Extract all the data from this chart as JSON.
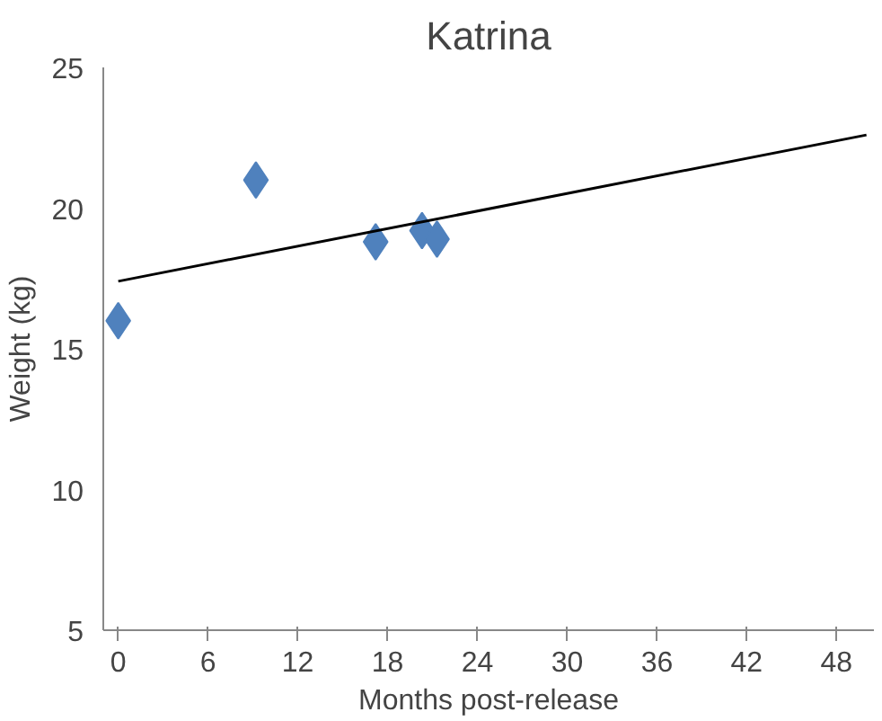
{
  "chart_data": {
    "type": "scatter",
    "title": "Katrina",
    "xlabel": "Months post-release",
    "ylabel": "Weight (kg)",
    "xlim": [
      -1,
      50.5
    ],
    "ylim": [
      5,
      25
    ],
    "xticks": [
      0,
      6,
      12,
      18,
      24,
      30,
      36,
      42,
      48
    ],
    "yticks": [
      5,
      10,
      15,
      20,
      25
    ],
    "grid": false,
    "series": [
      {
        "marker": "diamond",
        "color": "#4f81bd",
        "x": [
          0,
          9.2,
          17.2,
          20.3,
          21.3
        ],
        "values": [
          16.0,
          21.0,
          18.8,
          19.2,
          18.9
        ]
      },
      {
        "type": "line",
        "marker": "none",
        "line_style": "solid",
        "color": "#000000",
        "x": [
          0,
          50
        ],
        "values": [
          17.4,
          22.6
        ]
      }
    ]
  }
}
